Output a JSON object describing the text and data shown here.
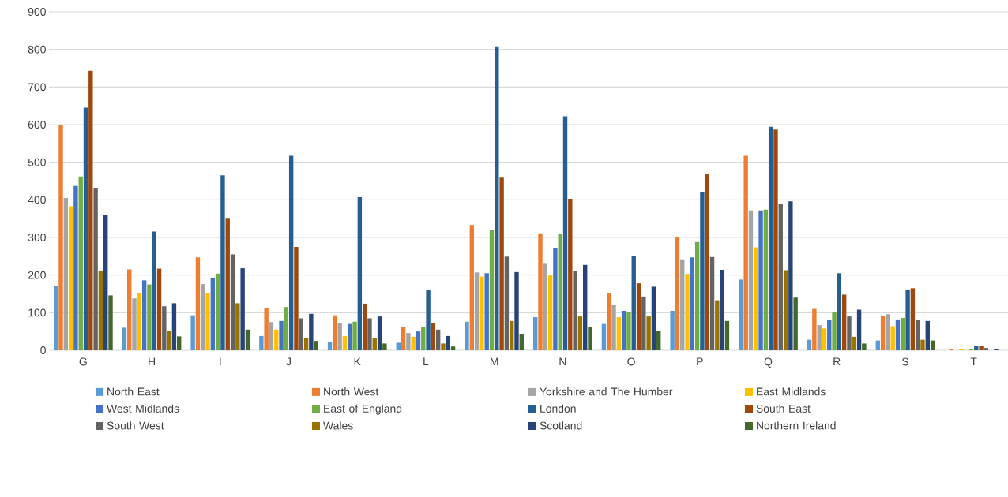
{
  "chart_data": {
    "type": "bar",
    "categories": [
      "G",
      "H",
      "I",
      "J",
      "K",
      "L",
      "M",
      "N",
      "O",
      "P",
      "Q",
      "R",
      "S",
      "T"
    ],
    "ylim": [
      0,
      900
    ],
    "yticks": [
      0,
      100,
      200,
      300,
      400,
      500,
      600,
      700,
      800,
      900
    ],
    "grid": "y",
    "legend": "bottom",
    "series": [
      {
        "name": "North East",
        "color": "#5b9bd5",
        "values": [
          170,
          60,
          93,
          38,
          23,
          20,
          76,
          88,
          70,
          105,
          188,
          28,
          26,
          null
        ]
      },
      {
        "name": "North West",
        "color": "#ed7d31",
        "values": [
          600,
          215,
          247,
          113,
          93,
          62,
          333,
          311,
          153,
          302,
          517,
          110,
          92,
          3
        ]
      },
      {
        "name": "Yorkshire and The Humber",
        "color": "#a5a5a5",
        "values": [
          405,
          138,
          176,
          75,
          73,
          46,
          207,
          230,
          122,
          242,
          372,
          67,
          96,
          null
        ]
      },
      {
        "name": "East Midlands",
        "color": "#ffc000",
        "values": [
          383,
          152,
          152,
          55,
          38,
          36,
          196,
          199,
          88,
          203,
          274,
          58,
          64,
          2
        ]
      },
      {
        "name": "West Midlands",
        "color": "#4472c4",
        "values": [
          437,
          186,
          191,
          78,
          70,
          50,
          205,
          273,
          105,
          247,
          372,
          80,
          82,
          null
        ]
      },
      {
        "name": "East of England",
        "color": "#70ad47",
        "values": [
          462,
          175,
          204,
          115,
          76,
          62,
          321,
          309,
          102,
          288,
          374,
          101,
          86,
          3
        ]
      },
      {
        "name": "London",
        "color": "#255e91",
        "values": [
          645,
          316,
          465,
          517,
          407,
          160,
          808,
          622,
          251,
          421,
          594,
          205,
          160,
          12
        ]
      },
      {
        "name": "South East",
        "color": "#9e480e",
        "values": [
          743,
          217,
          352,
          275,
          124,
          73,
          461,
          403,
          178,
          470,
          587,
          148,
          165,
          12
        ]
      },
      {
        "name": "South West",
        "color": "#636363",
        "values": [
          432,
          117,
          255,
          85,
          85,
          55,
          249,
          210,
          143,
          248,
          390,
          90,
          80,
          6
        ]
      },
      {
        "name": "Wales",
        "color": "#997300",
        "values": [
          212,
          52,
          125,
          33,
          33,
          18,
          78,
          90,
          90,
          133,
          213,
          36,
          28,
          0
        ]
      },
      {
        "name": "Scotland",
        "color": "#264478",
        "values": [
          360,
          125,
          218,
          97,
          90,
          38,
          208,
          227,
          169,
          214,
          396,
          108,
          78,
          3
        ]
      },
      {
        "name": "Northern Ireland",
        "color": "#43682b",
        "values": [
          146,
          37,
          55,
          25,
          18,
          10,
          43,
          62,
          52,
          78,
          140,
          18,
          26,
          null
        ]
      }
    ]
  }
}
